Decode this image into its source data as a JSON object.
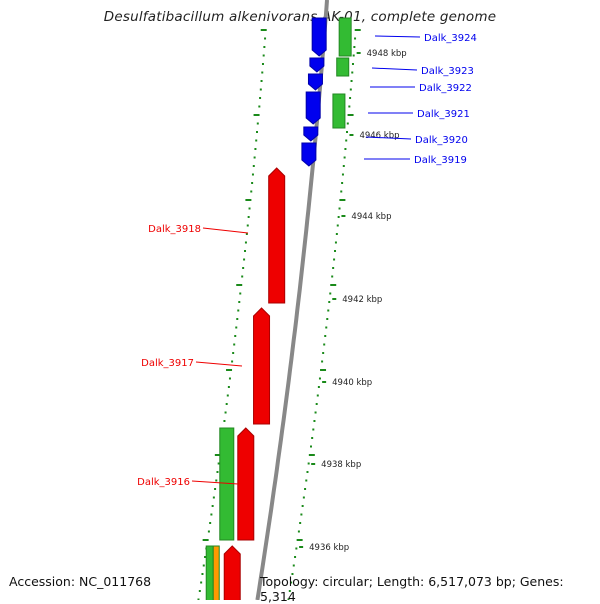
{
  "map": {
    "title": "Desulfatibacillum alkenivorans AK-01, complete genome",
    "accession": "Accession: NC_011768",
    "topology": "Topology: circular; Length: 6,517,073 bp; Genes: 5,314"
  },
  "colors": {
    "forward_cds": "#0000ee",
    "reverse_cds": "#ee0000",
    "forward_gene": "#33bb33",
    "reverse_gene": "#33bb33",
    "other_feature": "#ff9900",
    "backbone": "#888888",
    "tick": "#1a8a1a"
  },
  "scale": {
    "unit": "kbp",
    "labels": [
      "4948 kbp",
      "4946 kbp",
      "4944 kbp",
      "4942 kbp",
      "4940 kbp",
      "4938 kbp",
      "4936 kbp"
    ]
  },
  "genes_forward": [
    {
      "label": "Dalk_3924"
    },
    {
      "label": "Dalk_3923"
    },
    {
      "label": "Dalk_3922"
    },
    {
      "label": "Dalk_3921"
    },
    {
      "label": "Dalk_3920"
    },
    {
      "label": "Dalk_3919"
    }
  ],
  "genes_reverse": [
    {
      "label": "Dalk_3918"
    },
    {
      "label": "Dalk_3917"
    },
    {
      "label": "Dalk_3916"
    }
  ]
}
